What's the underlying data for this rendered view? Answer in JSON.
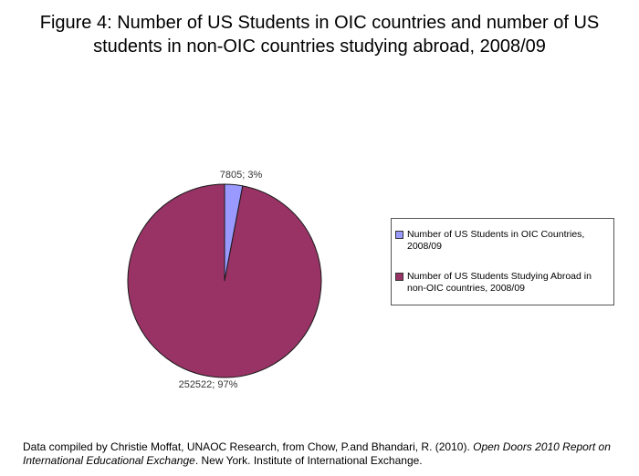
{
  "chart_data": {
    "type": "pie",
    "title": "Figure 4: Number of US Students in OIC countries and number of US students in non-OIC countries studying abroad, 2008/09",
    "slices": [
      {
        "name": "Number of US Students in OIC Countries, 2008/09",
        "value": 7805,
        "percent": 3,
        "color": "#9999FF",
        "data_label": "7805; 3%"
      },
      {
        "name": "Number of US Students Studying Abroad in non-OIC countries, 2008/09",
        "value": 252522,
        "percent": 97,
        "color": "#993366",
        "data_label": "252522; 97%"
      }
    ],
    "start_angle": "12-oclock",
    "direction": "clockwise",
    "legend_position": "right",
    "outline_color": "#1a1a1a"
  },
  "footnote": {
    "line1_normal": "Data compiled by Christie Moffat, UNAOC Research, from Chow, P.and Bhandari, R. (2010). ",
    "line1_italic": "Open Doors 2010 Report on",
    "line2_italic": "International Educational Exchange",
    "line2_normal": ". New York. Institute of International Exchange."
  }
}
